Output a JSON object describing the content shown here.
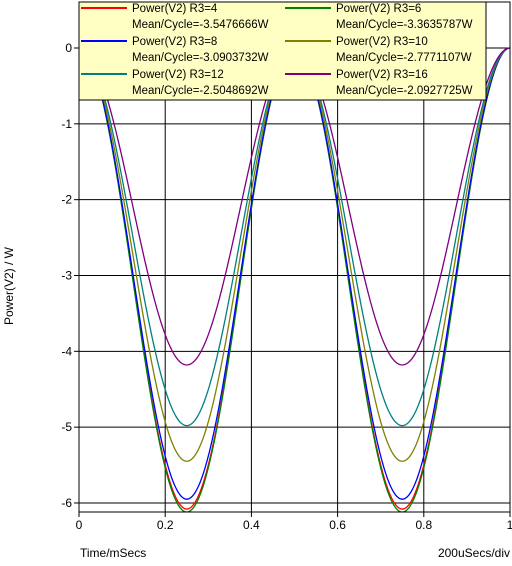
{
  "chart_data": {
    "type": "line",
    "xlabel": "Time/mSecs",
    "ylabel": "Power(V2) / W",
    "x_scale_note": "200uSecs/div",
    "xlim": [
      0,
      1
    ],
    "ylim": [
      -6.1,
      0.1
    ],
    "x_ticks": [
      {
        "value": 0,
        "label": "0"
      },
      {
        "value": 0.2,
        "label": "0.2"
      },
      {
        "value": 0.4,
        "label": "0.4"
      },
      {
        "value": 0.6,
        "label": "0.6"
      },
      {
        "value": 0.8,
        "label": "0.8"
      },
      {
        "value": 1,
        "label": "1"
      }
    ],
    "y_ticks": [
      {
        "value": 0,
        "label": "0"
      },
      {
        "value": -1,
        "label": "-1"
      },
      {
        "value": -2,
        "label": "-2"
      },
      {
        "value": -3,
        "label": "-3"
      },
      {
        "value": -4,
        "label": "-4"
      },
      {
        "value": -5,
        "label": "-5"
      },
      {
        "value": -6,
        "label": "-6"
      }
    ],
    "grid": true,
    "legend_position": "top",
    "period_ms": 0.5,
    "series": [
      {
        "name": "Power(V2) R3=4",
        "mean_label": "Mean/Cycle=-3.5476666W",
        "color": "#ff0000",
        "peak": -6.08
      },
      {
        "name": "Power(V2) R3=6",
        "mean_label": "Mean/Cycle=-3.3635787W",
        "color": "#008000",
        "peak": -6.12
      },
      {
        "name": "Power(V2) R3=8",
        "mean_label": "Mean/Cycle=-3.0903732W",
        "color": "#0000ff",
        "peak": -5.95
      },
      {
        "name": "Power(V2) R3=10",
        "mean_label": "Mean/Cycle=-2.7771107W",
        "color": "#808000",
        "peak": -5.45
      },
      {
        "name": "Power(V2) R3=12",
        "mean_label": "Mean/Cycle=-2.5048692W",
        "color": "#008080",
        "peak": -4.98
      },
      {
        "name": "Power(V2) R3=16",
        "mean_label": "Mean/Cycle=-2.0927725W",
        "color": "#800080",
        "peak": -4.18
      }
    ]
  }
}
